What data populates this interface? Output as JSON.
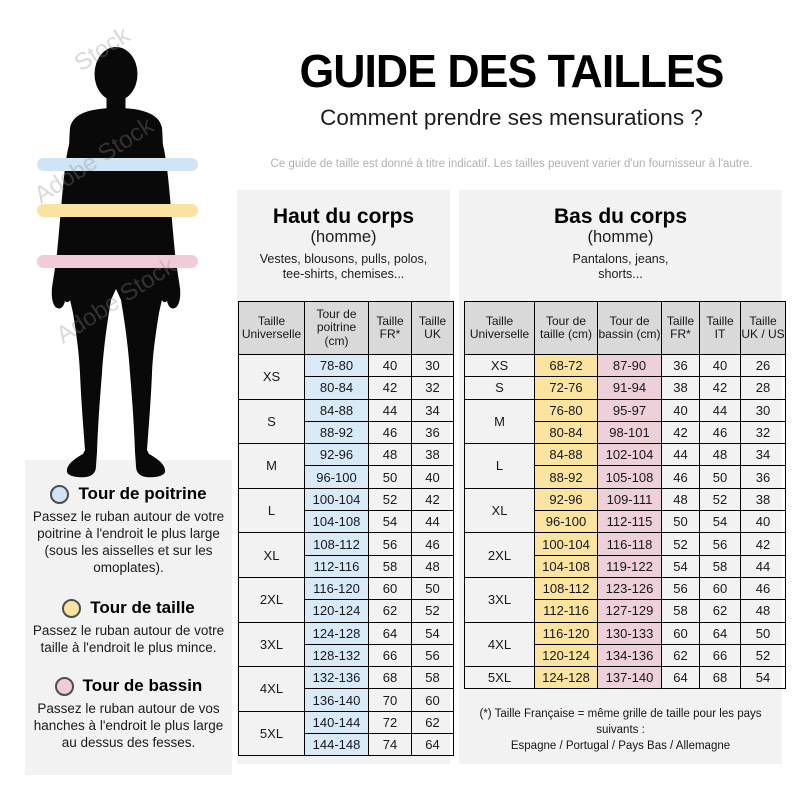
{
  "header": {
    "title": "GUIDE DES TAILLES",
    "subtitle": "Comment prendre ses mensurations ?",
    "disclaimer": "Ce guide de taille est donné à titre indicatif. Les tailles peuvent varier d'un fournisseur à l'autre."
  },
  "watermark": {
    "text": "Adobe Stock",
    "short": "Stock"
  },
  "legend": {
    "items": [
      {
        "label": "Tour de poitrine",
        "color": "#cfe4f4",
        "description": "Passez le ruban autour de votre poitrine à l'endroit le plus large (sous les aisselles et sur les omoplates)."
      },
      {
        "label": "Tour de taille",
        "color": "#fae2a0",
        "description": "Passez le ruban autour de votre taille à l'endroit le plus mince."
      },
      {
        "label": "Tour de bassin",
        "color": "#f0ccd8",
        "description": "Passez le ruban autour de vos hanches à l'endroit le plus large au dessus des fesses."
      }
    ]
  },
  "tables": {
    "haut": {
      "title": "Haut du corps",
      "subtitle": "(homme)",
      "categories": "Vestes, blousons, pulls, polos, tee-shirts, chemises...",
      "headers": [
        "Taille Universelle",
        "Tour de poitrine (cm)",
        "Taille FR*",
        "Taille UK"
      ],
      "column_colors": [
        null,
        "cell_blue",
        null,
        null
      ],
      "groups": [
        {
          "size": "XS",
          "rows": [
            [
              "78-80",
              "40",
              "30"
            ],
            [
              "80-84",
              "42",
              "32"
            ]
          ]
        },
        {
          "size": "S",
          "rows": [
            [
              "84-88",
              "44",
              "34"
            ],
            [
              "88-92",
              "46",
              "36"
            ]
          ]
        },
        {
          "size": "M",
          "rows": [
            [
              "92-96",
              "48",
              "38"
            ],
            [
              "96-100",
              "50",
              "40"
            ]
          ]
        },
        {
          "size": "L",
          "rows": [
            [
              "100-104",
              "52",
              "42"
            ],
            [
              "104-108",
              "54",
              "44"
            ]
          ]
        },
        {
          "size": "XL",
          "rows": [
            [
              "108-112",
              "56",
              "46"
            ],
            [
              "112-116",
              "58",
              "48"
            ]
          ]
        },
        {
          "size": "2XL",
          "rows": [
            [
              "116-120",
              "60",
              "50"
            ],
            [
              "120-124",
              "62",
              "52"
            ]
          ]
        },
        {
          "size": "3XL",
          "rows": [
            [
              "124-128",
              "64",
              "54"
            ],
            [
              "128-132",
              "66",
              "56"
            ]
          ]
        },
        {
          "size": "4XL",
          "rows": [
            [
              "132-136",
              "68",
              "58"
            ],
            [
              "136-140",
              "70",
              "60"
            ]
          ]
        },
        {
          "size": "5XL",
          "rows": [
            [
              "140-144",
              "72",
              "62"
            ],
            [
              "144-148",
              "74",
              "64"
            ]
          ]
        }
      ]
    },
    "bas": {
      "title": "Bas du corps",
      "subtitle": "(homme)",
      "categories": "Pantalons, jeans, shorts...",
      "headers": [
        "Taille Universelle",
        "Tour de taille (cm)",
        "Tour de bassin (cm)",
        "Taille FR*",
        "Taille IT",
        "Taille UK / US"
      ],
      "column_colors": [
        null,
        "cell_yellow",
        "cell_pink",
        null,
        null,
        null
      ],
      "groups": [
        {
          "size": "XS",
          "rows": [
            [
              "68-72",
              "87-90",
              "36",
              "40",
              "26"
            ]
          ]
        },
        {
          "size": "S",
          "rows": [
            [
              "72-76",
              "91-94",
              "38",
              "42",
              "28"
            ]
          ]
        },
        {
          "size": "M",
          "rows": [
            [
              "76-80",
              "95-97",
              "40",
              "44",
              "30"
            ],
            [
              "80-84",
              "98-101",
              "42",
              "46",
              "32"
            ]
          ]
        },
        {
          "size": "L",
          "rows": [
            [
              "84-88",
              "102-104",
              "44",
              "48",
              "34"
            ],
            [
              "88-92",
              "105-108",
              "46",
              "50",
              "36"
            ]
          ]
        },
        {
          "size": "XL",
          "rows": [
            [
              "92-96",
              "109-111",
              "48",
              "52",
              "38"
            ],
            [
              "96-100",
              "112-115",
              "50",
              "54",
              "40"
            ]
          ]
        },
        {
          "size": "2XL",
          "rows": [
            [
              "100-104",
              "116-118",
              "52",
              "56",
              "42"
            ],
            [
              "104-108",
              "119-122",
              "54",
              "58",
              "44"
            ]
          ]
        },
        {
          "size": "3XL",
          "rows": [
            [
              "108-112",
              "123-126",
              "56",
              "60",
              "46"
            ],
            [
              "112-116",
              "127-129",
              "58",
              "62",
              "48"
            ]
          ]
        },
        {
          "size": "4XL",
          "rows": [
            [
              "116-120",
              "130-133",
              "60",
              "64",
              "50"
            ],
            [
              "120-124",
              "134-136",
              "62",
              "66",
              "52"
            ]
          ]
        },
        {
          "size": "5XL",
          "rows": [
            [
              "124-128",
              "137-140",
              "64",
              "68",
              "54"
            ]
          ]
        }
      ]
    }
  },
  "footnote": {
    "line1": "(*) Taille Française = même grille de taille pour les pays suivants :",
    "line2": "Espagne / Portugal / Pays Bas / Allemagne"
  },
  "colors": {
    "cell_blue": "#d9eaf7",
    "cell_yellow": "#fbe3a0",
    "cell_pink": "#edd0da",
    "header_gray": "#d9d9d9",
    "panel_gray": "#f2f2f2",
    "band_blue": "#cfe4f4",
    "band_yellow": "#fae2a0",
    "band_pink": "#f0ccd8"
  }
}
